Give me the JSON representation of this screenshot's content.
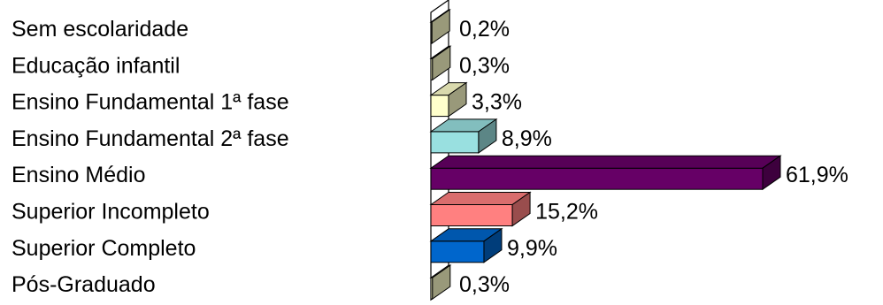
{
  "chart_data": {
    "type": "bar",
    "orientation": "horizontal",
    "style": "3d",
    "title": "",
    "xlabel": "",
    "ylabel": "",
    "grid": false,
    "legend": "none",
    "xlim": [
      0,
      61.9
    ],
    "categories": [
      "Sem escolaridade",
      "Educação infantil",
      "Ensino Fundamental 1ª fase",
      "Ensino Fundamental 2ª fase",
      "Ensino Médio",
      "Superior Incompleto",
      "Superior Completo",
      "Pós-Graduado"
    ],
    "values": [
      0.2,
      0.3,
      3.3,
      8.9,
      61.9,
      15.2,
      9.9,
      0.3
    ],
    "value_labels": [
      "0,2%",
      "0,3%",
      "3,3%",
      "8,9%",
      "61,9%",
      "15,2%",
      "9,9%",
      "0,3%"
    ],
    "colors": [
      "#FFFFCC",
      "#FFFFCC",
      "#FFFFCC",
      "#99E0E0",
      "#660066",
      "#FF8080",
      "#0066CC",
      "#FFFFCC"
    ]
  }
}
